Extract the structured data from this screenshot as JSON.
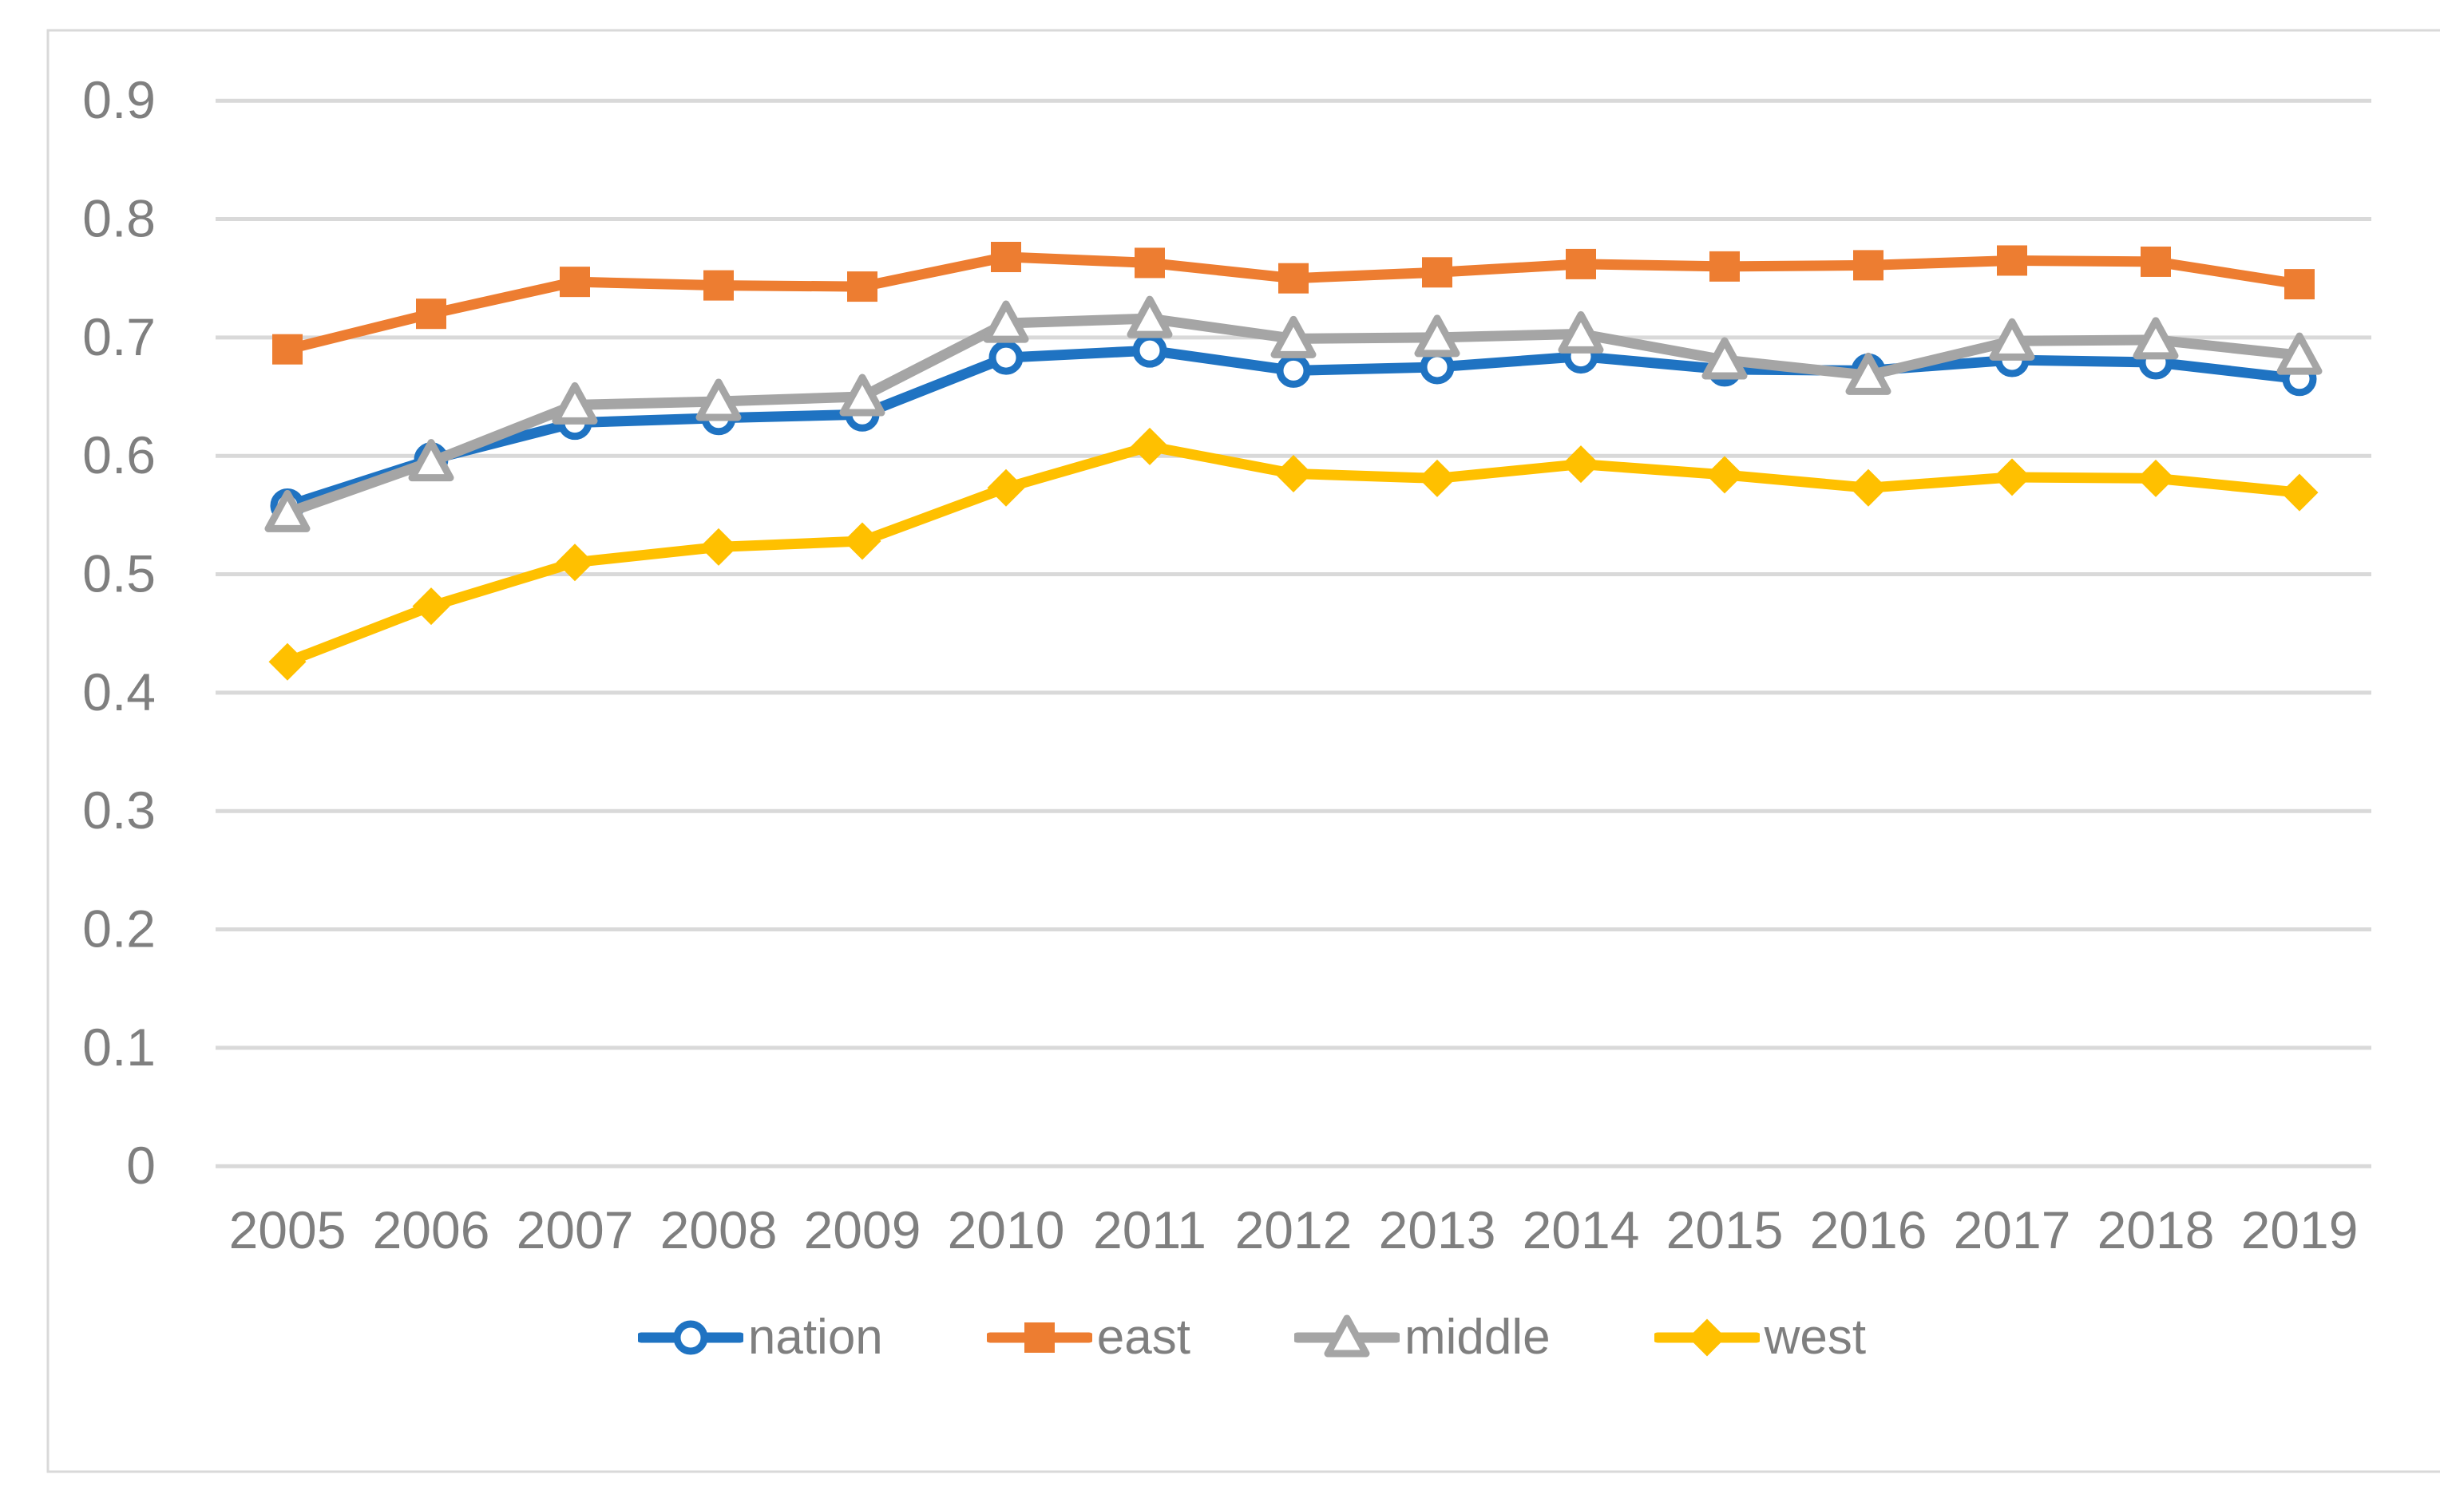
{
  "chart_data": {
    "type": "line",
    "title": "",
    "xlabel": "",
    "ylabel": "",
    "x": [
      2005,
      2006,
      2007,
      2008,
      2009,
      2010,
      2011,
      2012,
      2013,
      2014,
      2015,
      2016,
      2017,
      2018,
      2019
    ],
    "series": [
      {
        "name": "nation",
        "marker": "circle",
        "marker_fill": "open",
        "color": "#1F73C2",
        "values": [
          0.558,
          0.597,
          0.628,
          0.632,
          0.635,
          0.683,
          0.689,
          0.672,
          0.675,
          0.684,
          0.673,
          0.672,
          0.681,
          0.679,
          0.665
        ]
      },
      {
        "name": "east",
        "marker": "square",
        "marker_fill": "solid",
        "color": "#ED7D31",
        "values": [
          0.69,
          0.72,
          0.747,
          0.744,
          0.743,
          0.768,
          0.763,
          0.75,
          0.755,
          0.762,
          0.76,
          0.761,
          0.765,
          0.764,
          0.745
        ]
      },
      {
        "name": "middle",
        "marker": "triangle",
        "marker_fill": "open",
        "color": "#A5A5A5",
        "values": [
          0.552,
          0.595,
          0.643,
          0.646,
          0.65,
          0.712,
          0.716,
          0.699,
          0.7,
          0.703,
          0.681,
          0.668,
          0.697,
          0.698,
          0.685
        ]
      },
      {
        "name": "west",
        "marker": "diamond",
        "marker_fill": "solid",
        "color": "#FFC000",
        "values": [
          0.426,
          0.473,
          0.51,
          0.523,
          0.528,
          0.573,
          0.608,
          0.585,
          0.581,
          0.593,
          0.584,
          0.573,
          0.582,
          0.581,
          0.569
        ]
      }
    ],
    "ylim": [
      0,
      0.9
    ],
    "ytick_step": 0.1,
    "ytick_labels": [
      "0",
      "0.1",
      "0.2",
      "0.3",
      "0.4",
      "0.5",
      "0.6",
      "0.7",
      "0.8",
      "0.9"
    ],
    "grid": "horizontal",
    "legend_position": "bottom",
    "colors": {
      "gridline": "#D9D9D9",
      "border": "#D9D9D9",
      "axis_text": "#7F7F7F",
      "legend_text": "#7F7F7F",
      "background": "#FFFFFF",
      "marker_open_fill": "#FFFFFF"
    }
  }
}
